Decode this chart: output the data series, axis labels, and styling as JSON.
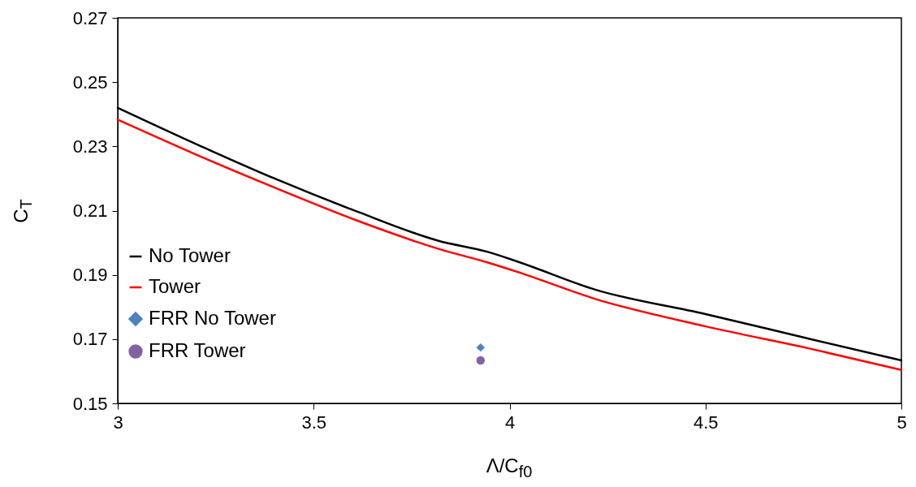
{
  "chart_data": {
    "type": "line",
    "xlabel": "Λ/C$_{f0}$",
    "ylabel": "C$_{T}$",
    "xlim": [
      3,
      5
    ],
    "xticks": [
      3,
      3.5,
      4,
      4.5,
      5
    ],
    "ylim": [
      0.15,
      0.27
    ],
    "yticks": [
      0.15,
      0.17,
      0.19,
      0.21,
      0.23,
      0.25,
      0.27
    ],
    "grid": false,
    "legend": "bottom left",
    "series": [
      {
        "name": "No Tower",
        "type": "line",
        "color": "#000000",
        "marker": "none",
        "x": [
          3,
          3.197,
          3.404,
          3.611,
          3.819,
          3.943,
          4.026,
          4.219,
          4.496,
          4.772,
          5
        ],
        "values": [
          0.242,
          0.2309,
          0.2198,
          0.2097,
          0.2006,
          0.1972,
          0.1939,
          0.1854,
          0.1779,
          0.1699,
          0.1634
        ]
      },
      {
        "name": "Tower",
        "type": "line",
        "color": "#ff0000",
        "marker": "none",
        "x": [
          3,
          3.197,
          3.404,
          3.611,
          3.819,
          3.943,
          4.026,
          4.219,
          4.496,
          4.772,
          5
        ],
        "values": [
          0.2383,
          0.2276,
          0.217,
          0.2069,
          0.1981,
          0.1939,
          0.1907,
          0.1825,
          0.1741,
          0.1669,
          0.1604
        ]
      },
      {
        "name": "FRR No Tower",
        "type": "scatter",
        "color": "#4f81bd",
        "marker": "diamond",
        "x": [
          3.926
        ],
        "values": [
          0.1674
        ]
      },
      {
        "name": "FRR Tower",
        "type": "scatter",
        "color": "#8064a2",
        "marker": "circle",
        "x": [
          3.926
        ],
        "values": [
          0.1634
        ]
      }
    ]
  }
}
